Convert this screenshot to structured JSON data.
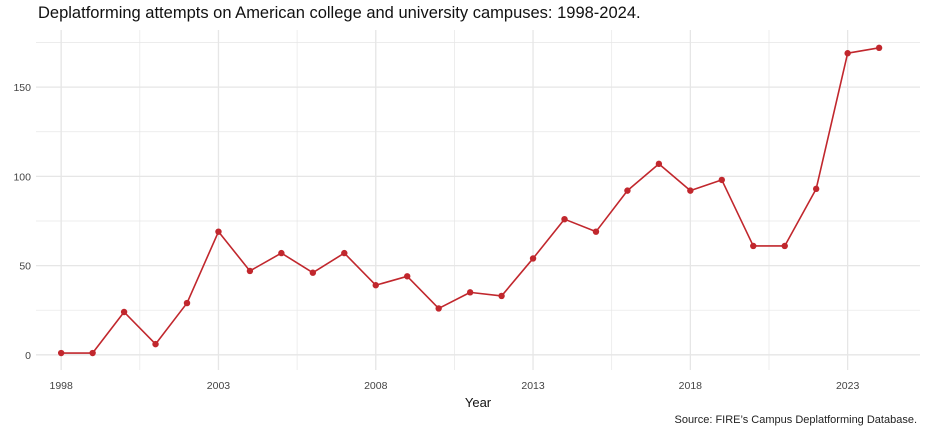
{
  "chart_data": {
    "type": "line",
    "title": "Deplatforming attempts on American college and university campuses: 1998-2024.",
    "xlabel": "Year",
    "ylabel": "",
    "source": "Source: FIRE’s Campus Deplatforming Database.",
    "x": [
      1998,
      1999,
      2000,
      2001,
      2002,
      2003,
      2004,
      2005,
      2006,
      2007,
      2008,
      2009,
      2010,
      2011,
      2012,
      2013,
      2014,
      2015,
      2016,
      2017,
      2018,
      2019,
      2020,
      2021,
      2022,
      2023,
      2024
    ],
    "series": [
      {
        "values": [
          1,
          1,
          24,
          6,
          29,
          69,
          47,
          57,
          46,
          57,
          39,
          44,
          26,
          35,
          33,
          54,
          76,
          69,
          92,
          107,
          92,
          98,
          61,
          61,
          93,
          169,
          172
        ]
      }
    ],
    "xticks": [
      1998,
      2003,
      2008,
      2013,
      2018,
      2023
    ],
    "yticks": [
      0,
      50,
      100,
      150
    ],
    "xlim": [
      1997.2,
      2025.3
    ],
    "ylim": [
      -8.5,
      182
    ],
    "grid": true,
    "legend": "none",
    "colors": {
      "line": "#c1272d",
      "grid": "#e6e6e6"
    }
  }
}
